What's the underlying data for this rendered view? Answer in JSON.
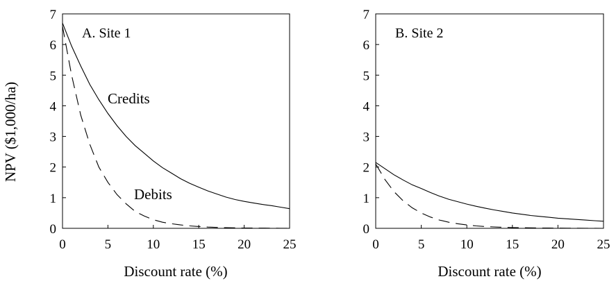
{
  "chart_data": [
    {
      "type": "line",
      "panel_label": "A. Site 1",
      "xlabel": "Discount rate (%)",
      "ylabel": "NPV ($1,000/ha)",
      "xlim": [
        0,
        25
      ],
      "ylim": [
        0,
        7
      ],
      "xticks": [
        "0",
        "5",
        "10",
        "15",
        "20",
        "25"
      ],
      "yticks": [
        "0",
        "1",
        "2",
        "3",
        "4",
        "5",
        "6",
        "7"
      ],
      "grid": false,
      "series": [
        {
          "name": "Credits",
          "style": "solid",
          "x": [
            0,
            1,
            2,
            3,
            4,
            5,
            6,
            7,
            8,
            9,
            10,
            11,
            12,
            13,
            14,
            15,
            16,
            17,
            18,
            19,
            20,
            21,
            22,
            23,
            24,
            25
          ],
          "y": [
            6.7,
            5.95,
            5.3,
            4.7,
            4.2,
            3.75,
            3.35,
            3.0,
            2.7,
            2.45,
            2.2,
            1.98,
            1.8,
            1.62,
            1.47,
            1.34,
            1.22,
            1.12,
            1.02,
            0.94,
            0.88,
            0.83,
            0.78,
            0.74,
            0.69,
            0.64
          ]
        },
        {
          "name": "Debits",
          "style": "dashed",
          "x": [
            0,
            0.5,
            1,
            2,
            3,
            4,
            5,
            6,
            7,
            8,
            9,
            10,
            11,
            12,
            13,
            14,
            15,
            16,
            17,
            18,
            19,
            20,
            21,
            22,
            23,
            24,
            25
          ],
          "y": [
            6.6,
            5.8,
            5.0,
            3.7,
            2.75,
            2.0,
            1.5,
            1.1,
            0.8,
            0.55,
            0.4,
            0.28,
            0.2,
            0.15,
            0.11,
            0.08,
            0.06,
            0.04,
            0.03,
            0.02,
            0.015,
            0.01,
            0.008,
            0.006,
            0.004,
            0.002,
            0.001
          ]
        }
      ]
    },
    {
      "type": "line",
      "panel_label": "B. Site 2",
      "xlabel": "Discount rate (%)",
      "xlim": [
        0,
        25
      ],
      "ylim": [
        0,
        7
      ],
      "xticks": [
        "0",
        "5",
        "10",
        "15",
        "20",
        "25"
      ],
      "yticks": [
        "0",
        "1",
        "2",
        "3",
        "4",
        "5",
        "6",
        "7"
      ],
      "grid": false,
      "series": [
        {
          "style": "solid",
          "x": [
            0,
            1,
            2,
            3,
            4,
            5,
            6,
            7,
            8,
            9,
            10,
            11,
            12,
            13,
            14,
            15,
            16,
            17,
            18,
            19,
            20,
            21,
            22,
            23,
            24,
            25
          ],
          "y": [
            2.15,
            1.95,
            1.75,
            1.58,
            1.42,
            1.3,
            1.17,
            1.05,
            0.95,
            0.87,
            0.79,
            0.72,
            0.66,
            0.6,
            0.55,
            0.5,
            0.46,
            0.42,
            0.39,
            0.36,
            0.33,
            0.31,
            0.29,
            0.27,
            0.25,
            0.23
          ]
        },
        {
          "style": "dashed",
          "x": [
            0,
            0.5,
            1,
            2,
            3,
            4,
            5,
            6,
            7,
            8,
            9,
            10,
            11,
            12,
            13,
            14,
            15,
            16,
            17,
            18,
            19,
            20,
            21,
            22,
            23,
            24,
            25
          ],
          "y": [
            2.1,
            1.85,
            1.6,
            1.2,
            0.9,
            0.67,
            0.5,
            0.37,
            0.27,
            0.2,
            0.15,
            0.11,
            0.08,
            0.06,
            0.045,
            0.035,
            0.025,
            0.02,
            0.015,
            0.01,
            0.008,
            0.006,
            0.005,
            0.004,
            0.003,
            0.002,
            0.001
          ]
        }
      ]
    }
  ]
}
